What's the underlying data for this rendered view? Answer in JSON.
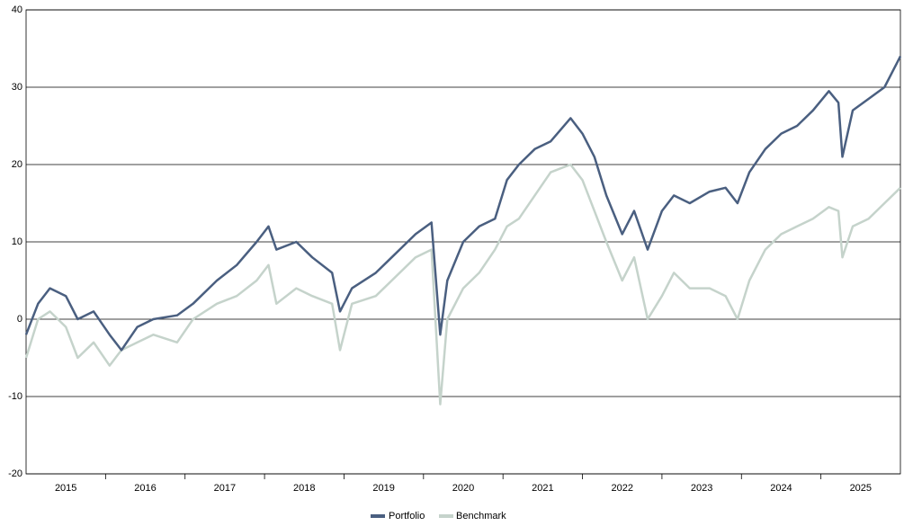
{
  "chart_data": {
    "type": "line",
    "x": [
      2015.0,
      2015.15,
      2015.3,
      2015.5,
      2015.65,
      2015.85,
      2016.05,
      2016.2,
      2016.4,
      2016.6,
      2016.9,
      2017.1,
      2017.4,
      2017.65,
      2017.9,
      2018.05,
      2018.15,
      2018.4,
      2018.6,
      2018.85,
      2018.95,
      2019.1,
      2019.4,
      2019.6,
      2019.9,
      2020.1,
      2020.21,
      2020.3,
      2020.5,
      2020.7,
      2020.9,
      2021.05,
      2021.2,
      2021.4,
      2021.6,
      2021.85,
      2022.0,
      2022.15,
      2022.3,
      2022.5,
      2022.65,
      2022.82,
      2023.0,
      2023.15,
      2023.35,
      2023.6,
      2023.8,
      2023.95,
      2024.1,
      2024.3,
      2024.5,
      2024.7,
      2024.9,
      2025.1,
      2025.22,
      2025.27,
      2025.4,
      2025.6,
      2025.8,
      2026.0
    ],
    "series": [
      {
        "name": "Portfolio",
        "color": "#4a5f80",
        "values": [
          -2,
          2,
          4,
          3,
          0,
          1,
          -2,
          -4,
          -1,
          0,
          0.5,
          2,
          5,
          7,
          10,
          12,
          9,
          10,
          8,
          6,
          1,
          4,
          6,
          8,
          11,
          12.5,
          -2,
          5,
          10,
          12,
          13,
          18,
          20,
          22,
          23,
          26,
          24,
          21,
          16,
          11,
          14,
          9,
          14,
          16,
          15,
          16.5,
          17,
          15,
          19,
          22,
          24,
          25,
          27,
          29.5,
          28,
          21,
          27,
          28.5,
          30,
          34
        ]
      },
      {
        "name": "Benchmark",
        "color": "#c5d3cb",
        "values": [
          -5,
          0,
          1,
          -1,
          -5,
          -3,
          -6,
          -4,
          -3,
          -2,
          -3,
          0,
          2,
          3,
          5,
          7,
          2,
          4,
          3,
          2,
          -4,
          2,
          3,
          5,
          8,
          9,
          -11,
          0,
          4,
          6,
          9,
          12,
          13,
          16,
          19,
          20,
          18,
          14,
          10,
          5,
          8,
          0,
          3,
          6,
          4,
          4,
          3,
          0,
          5,
          9,
          11,
          12,
          13,
          14.5,
          14,
          8,
          12,
          13,
          15,
          17
        ]
      }
    ],
    "xlim": [
      2015,
      2026
    ],
    "xticks": [
      2016,
      2017,
      2018,
      2019,
      2020,
      2021,
      2022,
      2023,
      2024,
      2025
    ],
    "year_labels": [
      {
        "value": 2015.5,
        "label": "2015"
      },
      {
        "value": 2016.5,
        "label": "2016"
      },
      {
        "value": 2017.5,
        "label": "2017"
      },
      {
        "value": 2018.5,
        "label": "2018"
      },
      {
        "value": 2019.5,
        "label": "2019"
      },
      {
        "value": 2020.5,
        "label": "2020"
      },
      {
        "value": 2021.5,
        "label": "2021"
      },
      {
        "value": 2022.5,
        "label": "2022"
      },
      {
        "value": 2023.5,
        "label": "2023"
      },
      {
        "value": 2024.5,
        "label": "2024"
      },
      {
        "value": 2025.5,
        "label": "2025"
      }
    ],
    "ylim": [
      -20,
      40
    ],
    "yticks": [
      -20,
      -10,
      0,
      10,
      20,
      30,
      40
    ],
    "grid": true,
    "legend": "bottom"
  }
}
